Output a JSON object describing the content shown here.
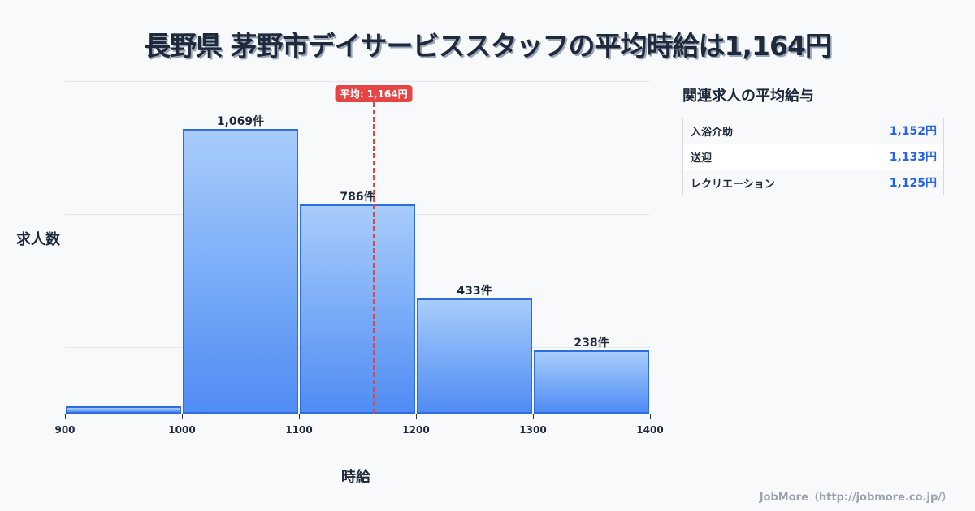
{
  "title": "長野県 茅野市デイサービススタッフの平均時給は1,164円",
  "chart_data": {
    "type": "bar",
    "title": "長野県 茅野市デイサービススタッフの平均時給は1,164円",
    "xlabel": "時給",
    "ylabel": "求人数",
    "categories": [
      "900-1000",
      "1000-1100",
      "1100-1200",
      "1200-1300",
      "1300-1400"
    ],
    "bins": [
      [
        900,
        1000
      ],
      [
        1000,
        1100
      ],
      [
        1100,
        1200
      ],
      [
        1200,
        1300
      ],
      [
        1300,
        1400
      ]
    ],
    "values": [
      28,
      1069,
      786,
      433,
      238
    ],
    "value_labels": [
      "",
      "1,069件",
      "786件",
      "433件",
      "238件"
    ],
    "x_ticks": [
      "900",
      "1000",
      "1100",
      "1200",
      "1300",
      "1400"
    ],
    "xlim": [
      900,
      1400
    ],
    "ylim": [
      0,
      1250
    ],
    "grid": true,
    "average": {
      "value": 1164,
      "label": "平均: 1,164円"
    }
  },
  "side_panel": {
    "title": "関連求人の平均給与",
    "rows": [
      {
        "name": "入浴介助",
        "value": "1,152円"
      },
      {
        "name": "送迎",
        "value": "1,133円"
      },
      {
        "name": "レクリエーション",
        "value": "1,125円"
      }
    ]
  },
  "footer": "JobMore（http://jobmore.co.jp/）",
  "colors": {
    "bar_border": "#2f6ce0",
    "bar_top": "#a8cdfb",
    "bar_bottom": "#4f8cf4",
    "average": "#e54545",
    "side_value": "#2563eb"
  }
}
